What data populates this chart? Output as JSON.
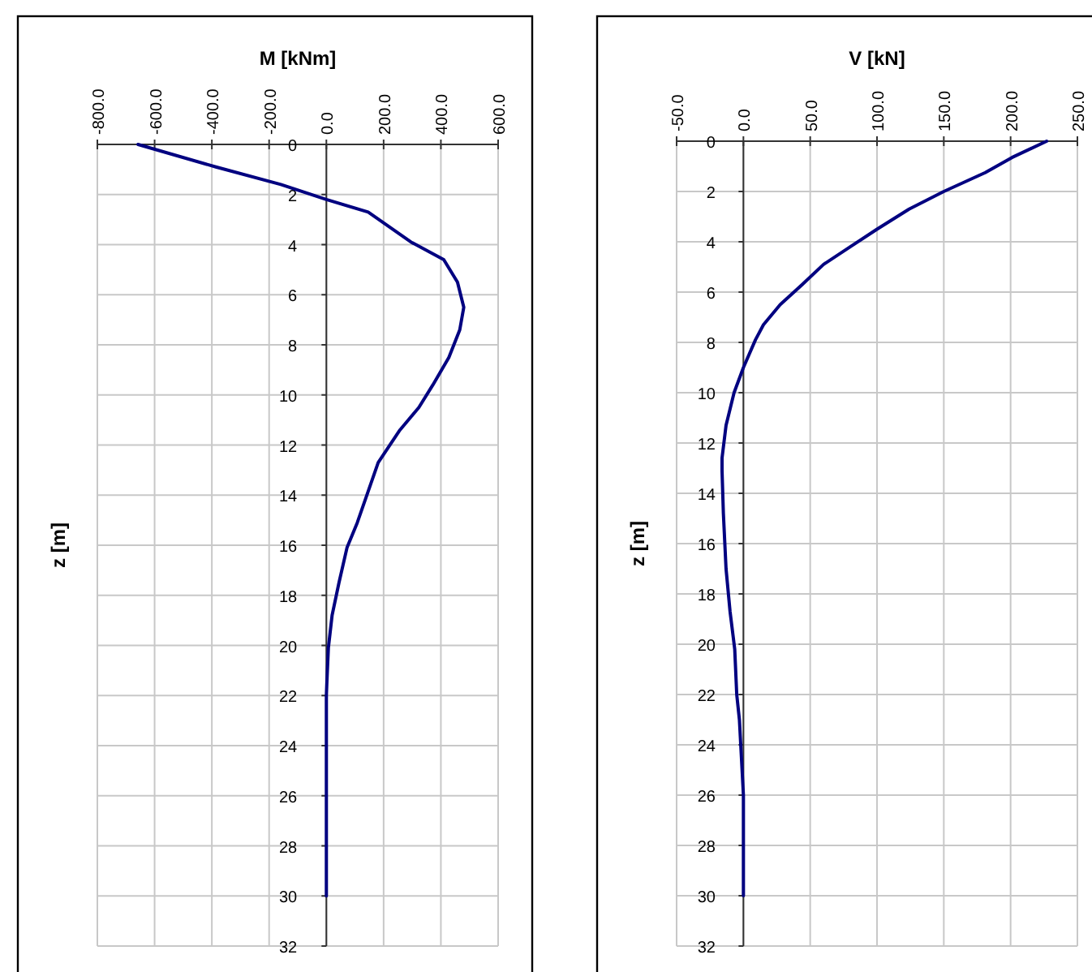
{
  "chart_data": [
    {
      "type": "line",
      "title": "M  [kNm]",
      "ylabel": "z [m]",
      "xlim": [
        -800,
        600
      ],
      "xticks": [
        {
          "value": -800,
          "label": "-800.0"
        },
        {
          "value": -600,
          "label": "-600.0"
        },
        {
          "value": -400,
          "label": "-400.0"
        },
        {
          "value": -200,
          "label": "-200.0"
        },
        {
          "value": 0,
          "label": "0.0"
        },
        {
          "value": 200,
          "label": "200.0"
        },
        {
          "value": 400,
          "label": "400.0"
        },
        {
          "value": 600,
          "label": "600.0"
        }
      ],
      "ylim": [
        32,
        0
      ],
      "yticks": [
        0,
        2,
        4,
        6,
        8,
        10,
        12,
        14,
        16,
        18,
        20,
        22,
        24,
        26,
        28,
        30,
        32
      ],
      "grid": true,
      "marker": "none",
      "series": [
        {
          "color": "#000080",
          "x": [
            -658,
            -386,
            -159,
            0,
            146,
            296,
            410,
            458,
            480,
            466,
            428,
            372,
            323,
            257,
            181,
            108,
            72,
            44,
            20,
            7,
            2,
            0,
            0
          ],
          "values": [
            0,
            0.9,
            1.6,
            2.2,
            2.7,
            3.9,
            4.6,
            5.5,
            6.5,
            7.4,
            8.5,
            9.6,
            10.5,
            11.4,
            12.7,
            15.1,
            16.1,
            17.5,
            18.8,
            20.1,
            21.4,
            22,
            30
          ]
        }
      ]
    },
    {
      "type": "line",
      "title": "V [kN]",
      "ylabel": "z [m]",
      "xlim": [
        -50,
        250
      ],
      "xticks": [
        {
          "value": -50,
          "label": "-50.0"
        },
        {
          "value": 0,
          "label": "0.0"
        },
        {
          "value": 50,
          "label": "50.0"
        },
        {
          "value": 100,
          "label": "100.0"
        },
        {
          "value": 150,
          "label": "150.0"
        },
        {
          "value": 200,
          "label": "200.0"
        },
        {
          "value": 250,
          "label": "250.0"
        }
      ],
      "ylim": [
        32,
        0
      ],
      "yticks": [
        0,
        2,
        4,
        6,
        8,
        10,
        12,
        14,
        16,
        18,
        20,
        22,
        24,
        26,
        28,
        30,
        32
      ],
      "grid": true,
      "marker": "none",
      "series": [
        {
          "color": "#000080",
          "x": [
            227,
            201,
            181,
            150,
            124,
            100,
            80,
            60,
            44,
            27.5,
            15,
            9,
            0,
            -7,
            -13,
            -16,
            -16,
            -15,
            -13,
            -10,
            -6.5,
            -5,
            -3,
            0,
            0
          ],
          "values": [
            0,
            0.65,
            1.25,
            2,
            2.7,
            3.5,
            4.2,
            4.9,
            5.7,
            6.5,
            7.3,
            7.9,
            9,
            10,
            11.3,
            12.6,
            13.1,
            14.8,
            17,
            18.7,
            20.2,
            22,
            23,
            26,
            30
          ]
        }
      ]
    }
  ]
}
